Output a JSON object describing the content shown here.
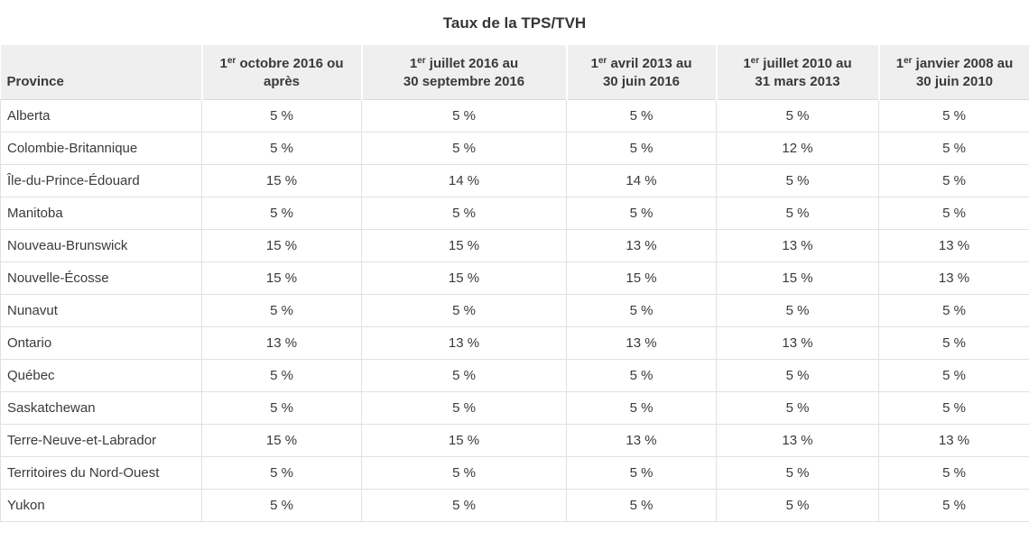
{
  "title": "Taux de la TPS/TVH",
  "table": {
    "province_header": "Province",
    "date_columns": [
      {
        "day": "1",
        "ordinal": "er",
        "line1": " octobre 2016 ou",
        "line2": "après"
      },
      {
        "day": "1",
        "ordinal": "er",
        "line1": " juillet 2016 au",
        "line2": "30 septembre 2016"
      },
      {
        "day": "1",
        "ordinal": "er",
        "line1": " avril 2013 au",
        "line2": "30 juin 2016"
      },
      {
        "day": "1",
        "ordinal": "er",
        "line1": " juillet 2010 au",
        "line2": "31 mars 2013"
      },
      {
        "day": "1",
        "ordinal": "er",
        "line1": " janvier 2008 au",
        "line2": "30 juin 2010"
      }
    ],
    "rows": [
      {
        "province": "Alberta",
        "rates": [
          "5 %",
          "5 %",
          "5 %",
          "5 %",
          "5 %"
        ]
      },
      {
        "province": "Colombie-Britannique",
        "rates": [
          "5 %",
          "5 %",
          "5 %",
          "12 %",
          "5 %"
        ]
      },
      {
        "province": "Île-du-Prince-Édouard",
        "rates": [
          "15 %",
          "14 %",
          "14 %",
          "5 %",
          "5 %"
        ]
      },
      {
        "province": "Manitoba",
        "rates": [
          "5 %",
          "5 %",
          "5 %",
          "5 %",
          "5 %"
        ]
      },
      {
        "province": "Nouveau-Brunswick",
        "rates": [
          "15 %",
          "15 %",
          "13 %",
          "13 %",
          "13 %"
        ]
      },
      {
        "province": "Nouvelle-Écosse",
        "rates": [
          "15 %",
          "15 %",
          "15 %",
          "15 %",
          "13 %"
        ]
      },
      {
        "province": "Nunavut",
        "rates": [
          "5 %",
          "5 %",
          "5 %",
          "5 %",
          "5 %"
        ]
      },
      {
        "province": "Ontario",
        "rates": [
          "13 %",
          "13 %",
          "13 %",
          "13 %",
          "5 %"
        ]
      },
      {
        "province": "Québec",
        "rates": [
          "5 %",
          "5 %",
          "5 %",
          "5 %",
          "5 %"
        ]
      },
      {
        "province": "Saskatchewan",
        "rates": [
          "5 %",
          "5 %",
          "5 %",
          "5 %",
          "5 %"
        ]
      },
      {
        "province": "Terre-Neuve-et-Labrador",
        "rates": [
          "15 %",
          "15 %",
          "13 %",
          "13 %",
          "13 %"
        ]
      },
      {
        "province": "Territoires du Nord-Ouest",
        "rates": [
          "5 %",
          "5 %",
          "5 %",
          "5 %",
          "5 %"
        ]
      },
      {
        "province": "Yukon",
        "rates": [
          "5 %",
          "5 %",
          "5 %",
          "5 %",
          "5 %"
        ]
      }
    ]
  },
  "colors": {
    "header_background": "#efefef",
    "row_border": "#e1e1e1",
    "header_bottom_border": "#d7d7d7",
    "text": "#3a3a3a"
  },
  "chart_data": {
    "type": "table",
    "title": "Taux de la TPS/TVH",
    "columns": [
      "Province",
      "1er octobre 2016 ou après",
      "1er juillet 2016 au 30 septembre 2016",
      "1er avril 2013 au 30 juin 2016",
      "1er juillet 2010 au 31 mars 2013",
      "1er janvier 2008 au 30 juin 2010"
    ],
    "rows": [
      [
        "Alberta",
        "5 %",
        "5 %",
        "5 %",
        "5 %",
        "5 %"
      ],
      [
        "Colombie-Britannique",
        "5 %",
        "5 %",
        "5 %",
        "12 %",
        "5 %"
      ],
      [
        "Île-du-Prince-Édouard",
        "15 %",
        "14 %",
        "14 %",
        "5 %",
        "5 %"
      ],
      [
        "Manitoba",
        "5 %",
        "5 %",
        "5 %",
        "5 %",
        "5 %"
      ],
      [
        "Nouveau-Brunswick",
        "15 %",
        "15 %",
        "13 %",
        "13 %",
        "13 %"
      ],
      [
        "Nouvelle-Écosse",
        "15 %",
        "15 %",
        "15 %",
        "15 %",
        "13 %"
      ],
      [
        "Nunavut",
        "5 %",
        "5 %",
        "5 %",
        "5 %",
        "5 %"
      ],
      [
        "Ontario",
        "13 %",
        "13 %",
        "13 %",
        "13 %",
        "5 %"
      ],
      [
        "Québec",
        "5 %",
        "5 %",
        "5 %",
        "5 %",
        "5 %"
      ],
      [
        "Saskatchewan",
        "5 %",
        "5 %",
        "5 %",
        "5 %",
        "5 %"
      ],
      [
        "Terre-Neuve-et-Labrador",
        "15 %",
        "15 %",
        "13 %",
        "13 %",
        "13 %"
      ],
      [
        "Territoires du Nord-Ouest",
        "5 %",
        "5 %",
        "5 %",
        "5 %",
        "5 %"
      ],
      [
        "Yukon",
        "5 %",
        "5 %",
        "5 %",
        "5 %",
        "5 %"
      ]
    ]
  }
}
